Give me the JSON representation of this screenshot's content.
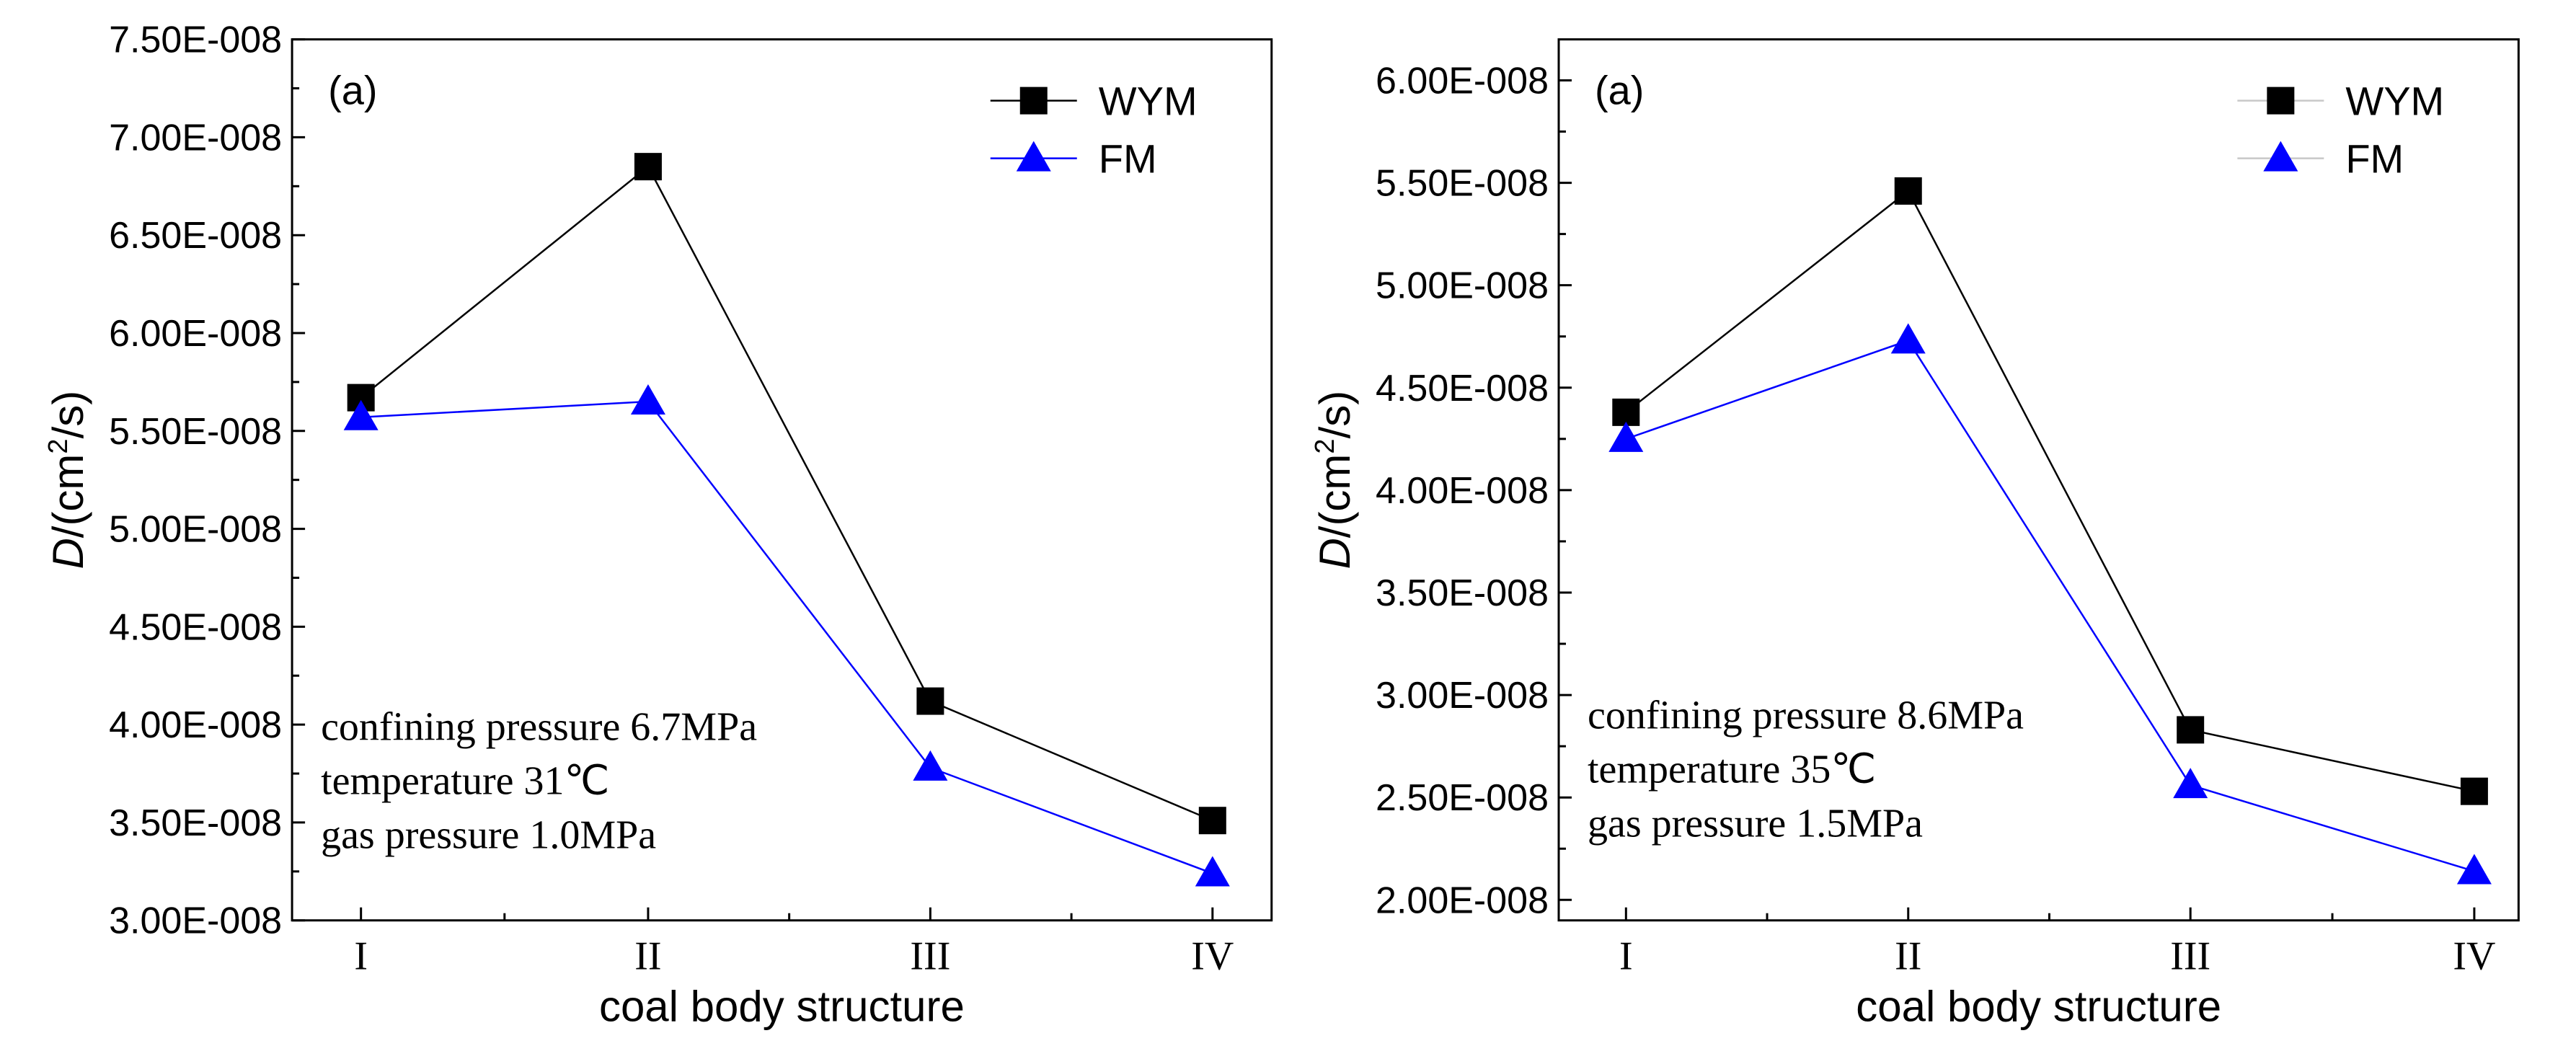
{
  "chart_data": [
    {
      "type": "line",
      "panel_label": "(a)",
      "categories": [
        "I",
        "II",
        "III",
        "IV"
      ],
      "series": [
        {
          "name": "WYM",
          "color": "#000000",
          "marker": "square",
          "values": [
            5.67e-08,
            6.85e-08,
            4.12e-08,
            3.51e-08
          ]
        },
        {
          "name": "FM",
          "color": "#0000ff",
          "marker": "triangle",
          "values": [
            5.57e-08,
            5.65e-08,
            3.78e-08,
            3.24e-08
          ]
        }
      ],
      "xlabel": "coal body structure",
      "ylabel_prefix": "D",
      "ylabel_unit": "/(cm",
      "ylabel_sup": "2",
      "ylabel_suffix": "/s)",
      "ylim": [
        3e-08,
        7.5e-08
      ],
      "yticks": [
        "3.00E-008",
        "3.50E-008",
        "4.00E-008",
        "4.50E-008",
        "5.00E-008",
        "5.50E-008",
        "6.00E-008",
        "6.50E-008",
        "7.00E-008",
        "7.50E-008"
      ],
      "legend_position": "top-right",
      "annotations": [
        "confining pressure 6.7MPa",
        "temperature 31℃",
        "gas pressure 1.0MPa"
      ]
    },
    {
      "type": "line",
      "panel_label": "(a)",
      "categories": [
        "I",
        "II",
        "III",
        "IV"
      ],
      "series": [
        {
          "name": "WYM",
          "color": "#000000",
          "marker": "square",
          "values": [
            4.38e-08,
            5.46e-08,
            2.83e-08,
            2.53e-08
          ]
        },
        {
          "name": "FM",
          "color": "#0000ff",
          "marker": "triangle",
          "values": [
            4.25e-08,
            4.73e-08,
            2.56e-08,
            2.14e-08
          ]
        }
      ],
      "xlabel": "coal body structure",
      "ylabel_prefix": "D",
      "ylabel_unit": "/(cm",
      "ylabel_sup": "2",
      "ylabel_suffix": "/s)",
      "ylim": [
        1.9e-08,
        6.2e-08
      ],
      "yticks": [
        "2.00E-008",
        "2.50E-008",
        "3.00E-008",
        "3.50E-008",
        "4.00E-008",
        "4.50E-008",
        "5.00E-008",
        "5.50E-008",
        "6.00E-008"
      ],
      "legend_position": "top-right",
      "annotations": [
        "confining pressure 8.6MPa",
        "temperature 35℃",
        "gas pressure 1.5MPa"
      ]
    }
  ]
}
